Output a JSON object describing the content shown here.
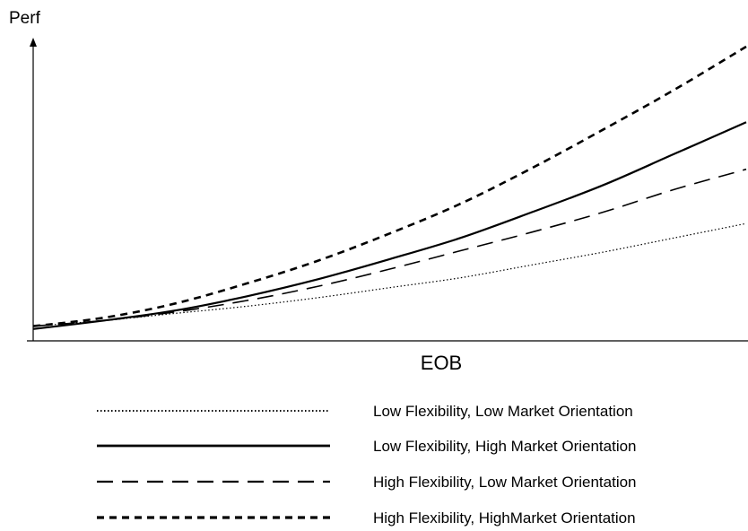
{
  "chart_data": {
    "type": "line",
    "title": "",
    "ylabel": "Perf",
    "xlabel": "EOB",
    "x": [
      0,
      0.1,
      0.2,
      0.3,
      0.4,
      0.5,
      0.6,
      0.7,
      0.8,
      0.9,
      1.0
    ],
    "ylim": [
      0,
      1
    ],
    "xlim": [
      0,
      1
    ],
    "grid": false,
    "legend_position": "bottom",
    "series": [
      {
        "name": "Low Flexibility, Low Market Orientation",
        "style": "dotted",
        "values": [
          0.02,
          0.04,
          0.065,
          0.09,
          0.12,
          0.155,
          0.19,
          0.235,
          0.28,
          0.33,
          0.38
        ]
      },
      {
        "name": "Low Flexibility, High Market Orientation",
        "style": "solid",
        "values": [
          0.01,
          0.04,
          0.075,
          0.125,
          0.185,
          0.255,
          0.33,
          0.42,
          0.515,
          0.625,
          0.735
        ]
      },
      {
        "name": "High Flexibility, Low Market Orientation",
        "style": "long-dash",
        "values": [
          0.02,
          0.04,
          0.07,
          0.11,
          0.16,
          0.22,
          0.285,
          0.35,
          0.42,
          0.5,
          0.57
        ]
      },
      {
        "name": "High Flexibility, HighMarket Orientation",
        "style": "short-dash",
        "values": [
          0.02,
          0.05,
          0.1,
          0.17,
          0.25,
          0.345,
          0.45,
          0.575,
          0.71,
          0.85,
          1.0
        ]
      }
    ]
  }
}
